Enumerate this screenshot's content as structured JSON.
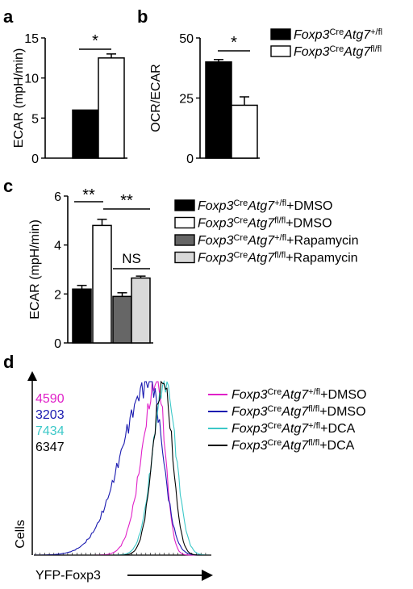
{
  "panels": {
    "a": {
      "letter": "a"
    },
    "b": {
      "letter": "b"
    },
    "c": {
      "letter": "c"
    },
    "d": {
      "letter": "d"
    }
  },
  "legend_ab": [
    {
      "gene": "Foxp3",
      "sup1": "Cre",
      "gene2": "Atg7",
      "sup2": "+/fl",
      "fill": "#000000"
    },
    {
      "gene": "Foxp3",
      "sup1": "Cre",
      "gene2": "Atg7",
      "sup2": "fl/fl",
      "fill": "#ffffff"
    }
  ],
  "legend_c": [
    {
      "gene": "Foxp3",
      "sup1": "Cre",
      "gene2": "Atg7",
      "sup2": "+/fl",
      "suffix": "+DMSO",
      "fill": "#000000"
    },
    {
      "gene": "Foxp3",
      "sup1": "Cre",
      "gene2": "Atg7",
      "sup2": "fl/fl",
      "suffix": "+DMSO",
      "fill": "#ffffff"
    },
    {
      "gene": "Foxp3",
      "sup1": "Cre",
      "gene2": "Atg7",
      "sup2": "+/fl",
      "suffix": "+Rapamycin",
      "fill": "#666666"
    },
    {
      "gene": "Foxp3",
      "sup1": "Cre",
      "gene2": "Atg7",
      "sup2": "fl/fl",
      "suffix": "+Rapamycin",
      "fill": "#d9d9d9"
    }
  ],
  "legend_d": [
    {
      "gene": "Foxp3",
      "sup1": "Cre",
      "gene2": "Atg7",
      "sup2": "+/fl",
      "suffix": "+DMSO",
      "color": "#e020c8"
    },
    {
      "gene": "Foxp3",
      "sup1": "Cre",
      "gene2": "Atg7",
      "sup2": "fl/fl",
      "suffix": "+DMSO",
      "color": "#1a1ab0"
    },
    {
      "gene": "Foxp3",
      "sup1": "Cre",
      "gene2": "Atg7",
      "sup2": "+/fl",
      "suffix": "+DCA",
      "color": "#3cc8c8"
    },
    {
      "gene": "Foxp3",
      "sup1": "Cre",
      "gene2": "Atg7",
      "sup2": "fl/fl",
      "suffix": "+DCA",
      "color": "#000000"
    }
  ],
  "chart_data": [
    {
      "panel": "a",
      "type": "bar",
      "ylabel": "ECAR (mpH/min)",
      "ylim": [
        0,
        15
      ],
      "yticks": [
        "0",
        "5",
        "10",
        "15"
      ],
      "values": [
        6.0,
        12.5
      ],
      "errors": [
        0,
        0.5
      ],
      "fills": [
        "#000000",
        "#ffffff"
      ],
      "significance": [
        {
          "text": "*"
        }
      ]
    },
    {
      "panel": "b",
      "type": "bar",
      "ylabel": "OCR/ECAR",
      "ylim": [
        0,
        50
      ],
      "yticks": [
        "0",
        "25",
        "50"
      ],
      "values": [
        40,
        22
      ],
      "errors": [
        1,
        3.5
      ],
      "fills": [
        "#000000",
        "#ffffff"
      ],
      "significance": [
        {
          "text": "*"
        }
      ]
    },
    {
      "panel": "c",
      "type": "bar",
      "ylabel": "ECAR (mpH/min)",
      "ylim": [
        0,
        6
      ],
      "yticks": [
        "0",
        "2",
        "4",
        "6"
      ],
      "values": [
        2.2,
        4.8,
        1.9,
        2.65
      ],
      "errors": [
        0.15,
        0.25,
        0.15,
        0.08
      ],
      "fills": [
        "#000000",
        "#ffffff",
        "#666666",
        "#d9d9d9"
      ],
      "significance": [
        {
          "text": "**"
        },
        {
          "text": "**"
        },
        {
          "text": "NS"
        }
      ]
    },
    {
      "panel": "d",
      "type": "histogram",
      "xlabel": "YFP-Foxp3",
      "ylabel": "Cells",
      "series": [
        {
          "mfi": "4590",
          "color": "#e020c8",
          "peak": 0.695,
          "width_left": 0.085,
          "width_right": 0.045
        },
        {
          "mfi": "3203",
          "color": "#1a1ab0",
          "peak": 0.655,
          "width_left": 0.16,
          "width_right": 0.07
        },
        {
          "mfi": "7434",
          "color": "#3cc8c8",
          "peak": 0.74,
          "width_left": 0.07,
          "width_right": 0.06
        },
        {
          "mfi": "6347",
          "color": "#000000",
          "peak": 0.73,
          "width_left": 0.06,
          "width_right": 0.05
        }
      ]
    }
  ]
}
